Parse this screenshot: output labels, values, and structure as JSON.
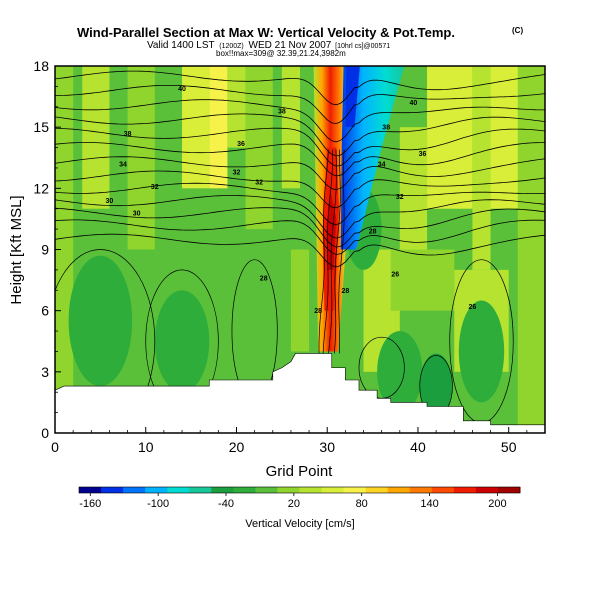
{
  "chart_data": {
    "type": "heatmap",
    "title": "Wind-Parallel Section at Max W: Vertical Velocity & Pot.Temp.",
    "title_mark": "(C)",
    "subtitle_prefix": "Valid 1400 LST",
    "subtitle_small1": "(1200Z)",
    "subtitle_main": "WED 21 Nov 2007",
    "subtitle_small2": "[10hrl cs]@00571",
    "subtitle2": "box!!max=309@ 32.39,21.24,3982m",
    "xlabel": "Grid Point",
    "ylabel": "Height [Kft MSL]",
    "xlim": [
      0,
      54
    ],
    "ylim": [
      0,
      18
    ],
    "x_ticks": [
      0,
      10,
      20,
      30,
      40,
      50
    ],
    "y_ticks": [
      0,
      3,
      6,
      9,
      12,
      15,
      18
    ],
    "colorbar": {
      "label": "Vertical Velocity [cm/s]",
      "ticks": [
        -160,
        -100,
        -40,
        20,
        80,
        140,
        200
      ],
      "min": -170,
      "max": 220,
      "colors": [
        "#00008f",
        "#0030e6",
        "#0073ff",
        "#00b3ff",
        "#00dcd2",
        "#16c79a",
        "#1a9e3e",
        "#2fad3a",
        "#5ac03a",
        "#8fd52e",
        "#b6e230",
        "#d8ee38",
        "#f6f24a",
        "#ffd324",
        "#ffa600",
        "#ff7800",
        "#ff4a00",
        "#ef1c00",
        "#cc0000",
        "#a00000"
      ]
    },
    "theta_contour_labels": [
      "40",
      "38",
      "36",
      "34",
      "32",
      "30",
      "28",
      "26"
    ],
    "terrain_profile": [
      [
        0,
        2.1
      ],
      [
        1,
        2.3
      ],
      [
        17,
        2.3
      ],
      [
        17,
        2.6
      ],
      [
        24,
        2.6
      ],
      [
        24,
        3.0
      ],
      [
        25,
        3.2
      ],
      [
        26,
        3.5
      ],
      [
        26.5,
        3.9
      ],
      [
        30.5,
        3.9
      ],
      [
        30.5,
        3.2
      ],
      [
        32,
        3.2
      ],
      [
        32,
        2.6
      ],
      [
        33.5,
        2.6
      ],
      [
        33.5,
        2.1
      ],
      [
        35.5,
        2.1
      ],
      [
        35.5,
        1.7
      ],
      [
        37,
        1.7
      ],
      [
        37,
        1.5
      ],
      [
        41,
        1.5
      ],
      [
        41,
        1.3
      ],
      [
        45,
        1.3
      ],
      [
        45,
        0.6
      ],
      [
        48,
        0.6
      ],
      [
        48,
        0.4
      ],
      [
        54,
        0.4
      ]
    ],
    "max_w_location": {
      "x": 30,
      "y": 10
    }
  }
}
